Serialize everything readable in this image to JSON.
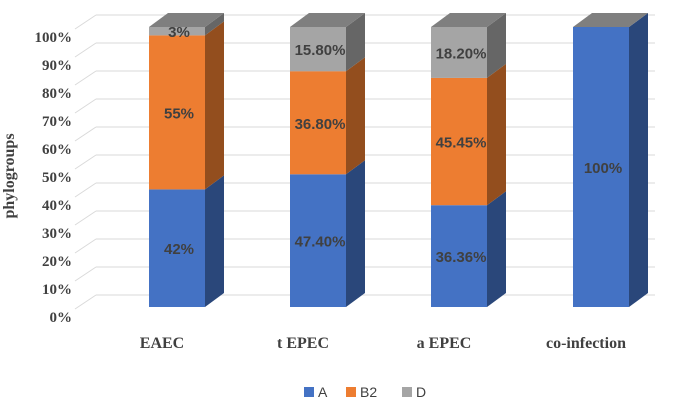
{
  "chart_data": {
    "type": "bar",
    "stacked": true,
    "three_d": true,
    "title": "",
    "xlabel": "",
    "ylabel": "phylogroups",
    "ylim": [
      0,
      100
    ],
    "y_ticks": [
      "0%",
      "10%",
      "20%",
      "30%",
      "40%",
      "50%",
      "60%",
      "70%",
      "80%",
      "90%",
      "100%"
    ],
    "categories": [
      "EAEC",
      "t EPEC",
      "a EPEC",
      "co-infection"
    ],
    "series": [
      {
        "name": "A",
        "color": "#4472C4",
        "values": [
          42,
          47.4,
          36.36,
          100
        ],
        "labels": [
          "42%",
          "47.40%",
          "36.36%",
          "100%"
        ]
      },
      {
        "name": "B2",
        "color": "#ED7D31",
        "values": [
          55,
          36.8,
          45.45,
          0
        ],
        "labels": [
          "55%",
          "36.80%",
          "45.45%",
          ""
        ]
      },
      {
        "name": "D",
        "color": "#A5A5A5",
        "values": [
          3,
          15.8,
          18.2,
          0
        ],
        "labels": [
          "3%",
          "15.80%",
          "18.20%",
          ""
        ]
      }
    ],
    "legend": {
      "position": "bottom",
      "entries": [
        "A",
        "B2",
        "D"
      ]
    }
  }
}
